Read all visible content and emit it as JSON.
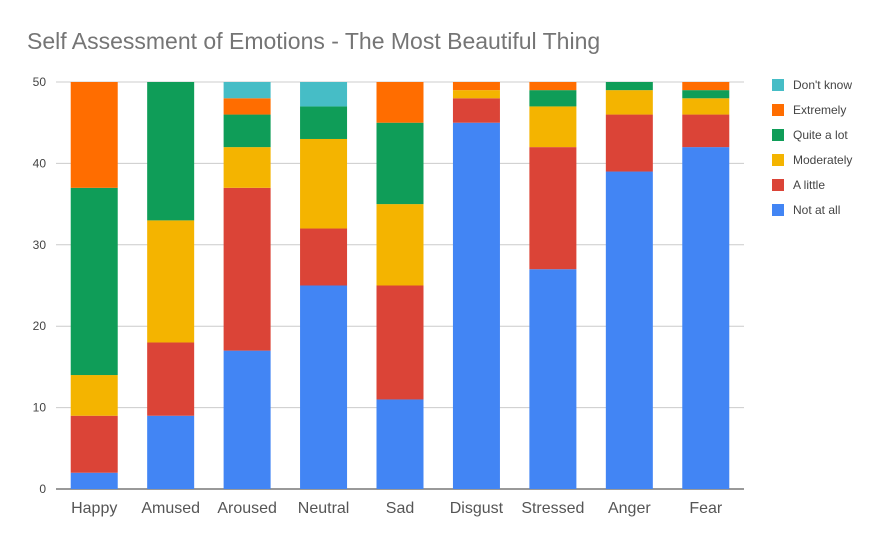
{
  "chart_data": {
    "type": "bar",
    "stacked": true,
    "title": "Self Assessment of Emotions - The Most Beautiful Thing",
    "xlabel": "",
    "ylabel": "",
    "ylim": [
      0,
      50
    ],
    "yticks": [
      "0",
      "10",
      "20",
      "30",
      "40",
      "50"
    ],
    "grid": true,
    "legend_position": "right",
    "categories": [
      "Happy",
      "Amused",
      "Aroused",
      "Neutral",
      "Sad",
      "Disgust",
      "Stressed",
      "Anger",
      "Fear"
    ],
    "series": [
      {
        "name": "Not at all",
        "color": "#4285f4",
        "values": [
          2,
          9,
          17,
          25,
          11,
          45,
          27,
          39,
          42
        ]
      },
      {
        "name": "A little",
        "color": "#db4437",
        "values": [
          7,
          9,
          20,
          7,
          14,
          3,
          15,
          7,
          4
        ]
      },
      {
        "name": "Moderately",
        "color": "#f4b400",
        "values": [
          5,
          15,
          5,
          11,
          10,
          1,
          5,
          3,
          2
        ]
      },
      {
        "name": "Quite a lot",
        "color": "#0f9d58",
        "values": [
          23,
          17,
          4,
          4,
          10,
          0,
          2,
          1,
          1
        ]
      },
      {
        "name": "Extremely",
        "color": "#ff6d00",
        "values": [
          13,
          0,
          2,
          0,
          5,
          1,
          1,
          0,
          1
        ]
      },
      {
        "name": "Don't know",
        "color": "#46bdc6",
        "values": [
          0,
          0,
          2,
          3,
          0,
          0,
          0,
          0,
          0
        ]
      }
    ],
    "legend_order": [
      "Don't know",
      "Extremely",
      "Quite a lot",
      "Moderately",
      "A little",
      "Not at all"
    ]
  }
}
